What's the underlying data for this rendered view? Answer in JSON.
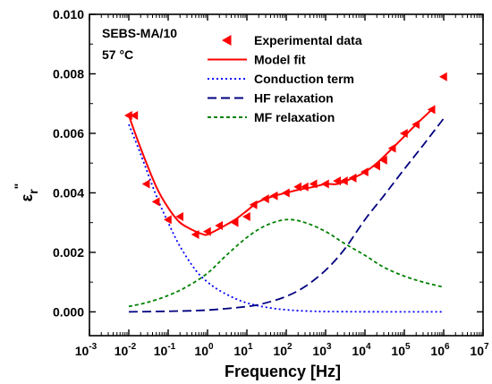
{
  "chart_data": {
    "type": "line",
    "xlabel": "Frequency [Hz]",
    "ylabel_main": "ε",
    "ylabel_sub": "r",
    "ylabel_sup": "\"",
    "x_scale": "log",
    "xlim": [
      0.001,
      10000000
    ],
    "ylim": [
      -0.0008,
      0.01
    ],
    "x_ticks": [
      0.001,
      0.01,
      0.1,
      1,
      10,
      100,
      1000,
      10000,
      100000,
      1000000,
      10000000
    ],
    "x_tick_labels": [
      {
        "base": "10",
        "exp": "-3"
      },
      {
        "base": "10",
        "exp": "-2"
      },
      {
        "base": "10",
        "exp": "-1"
      },
      {
        "base": "10",
        "exp": "0"
      },
      {
        "base": "10",
        "exp": "1"
      },
      {
        "base": "10",
        "exp": "2"
      },
      {
        "base": "10",
        "exp": "3"
      },
      {
        "base": "10",
        "exp": "4"
      },
      {
        "base": "10",
        "exp": "5"
      },
      {
        "base": "10",
        "exp": "6"
      },
      {
        "base": "10",
        "exp": "7"
      }
    ],
    "y_ticks": [
      0,
      0.002,
      0.004,
      0.006,
      0.008,
      0.01
    ],
    "y_tick_labels": [
      "0.000",
      "0.002",
      "0.004",
      "0.006",
      "0.008",
      "0.010"
    ],
    "annotations": [
      "SEBS-MA/10",
      "57 °C"
    ],
    "legend_position": "top-right",
    "grid": false,
    "series": [
      {
        "name": "Experimental data",
        "style": "triangle-left-markers",
        "color": "#ff0000",
        "x": [
          0.01,
          0.014,
          0.028,
          0.05,
          0.1,
          0.2,
          0.5,
          1,
          2,
          5,
          10,
          15,
          30,
          50,
          100,
          200,
          300,
          500,
          1000,
          2000,
          3000,
          5000,
          10000,
          20000,
          30000,
          50000,
          100000,
          200000,
          500000,
          1000000
        ],
        "y": [
          0.0066,
          0.0066,
          0.0043,
          0.0037,
          0.0031,
          0.0032,
          0.0026,
          0.0027,
          0.0029,
          0.003,
          0.0032,
          0.0036,
          0.0038,
          0.0039,
          0.004,
          0.0042,
          0.0042,
          0.0043,
          0.0043,
          0.0044,
          0.0044,
          0.0045,
          0.0047,
          0.0049,
          0.0051,
          0.0055,
          0.006,
          0.0063,
          0.0068,
          0.0079
        ]
      },
      {
        "name": "Model fit",
        "style": "solid",
        "color": "#ff0000",
        "x": [
          0.01,
          0.02,
          0.05,
          0.1,
          0.2,
          0.5,
          0.8,
          1,
          2,
          5,
          10,
          20,
          50,
          100,
          200,
          500,
          1000,
          2000,
          5000,
          10000,
          20000,
          50000,
          100000,
          200000,
          500000
        ],
        "y": [
          0.0066,
          0.0055,
          0.0042,
          0.0035,
          0.003,
          0.0027,
          0.0026,
          0.0026,
          0.0028,
          0.0031,
          0.0034,
          0.0037,
          0.0039,
          0.004,
          0.0041,
          0.0042,
          0.0043,
          0.0043,
          0.0045,
          0.0047,
          0.005,
          0.0055,
          0.0059,
          0.0063,
          0.0068
        ]
      },
      {
        "name": "Conduction term",
        "style": "dotted",
        "color": "#0000ff",
        "x": [
          0.01,
          0.02,
          0.05,
          0.1,
          0.2,
          0.5,
          1,
          2,
          5,
          10,
          20,
          50,
          100,
          200,
          500,
          1000,
          5000,
          10000,
          100000,
          1000000
        ],
        "y": [
          0.0063,
          0.0053,
          0.0039,
          0.003,
          0.0022,
          0.0014,
          0.001,
          0.00072,
          0.00045,
          0.0003,
          0.0002,
          0.00011,
          7e-05,
          4e-05,
          2e-05,
          1e-05,
          5e-06,
          3e-06,
          1e-06,
          0.0
        ]
      },
      {
        "name": "HF relaxation",
        "style": "dashed",
        "color": "#000080",
        "x": [
          0.01,
          0.1,
          1,
          10,
          30,
          100,
          300,
          1000,
          3000,
          10000,
          30000,
          100000,
          300000,
          1000000
        ],
        "y": [
          0.0,
          2e-05,
          6e-05,
          0.00018,
          0.0003,
          0.00052,
          0.00085,
          0.0014,
          0.0021,
          0.0031,
          0.0039,
          0.0048,
          0.0056,
          0.0065
        ]
      },
      {
        "name": "MF relaxation",
        "style": "dashed-short",
        "color": "#008000",
        "x": [
          0.01,
          0.03,
          0.1,
          0.3,
          1,
          3,
          10,
          30,
          100,
          300,
          1000,
          3000,
          10000,
          30000,
          100000,
          300000,
          1000000
        ],
        "y": [
          0.00018,
          0.00032,
          0.00055,
          0.00085,
          0.0013,
          0.0019,
          0.0025,
          0.0029,
          0.0031,
          0.003,
          0.0027,
          0.0023,
          0.0019,
          0.0015,
          0.0012,
          0.001,
          0.00083
        ]
      }
    ]
  }
}
